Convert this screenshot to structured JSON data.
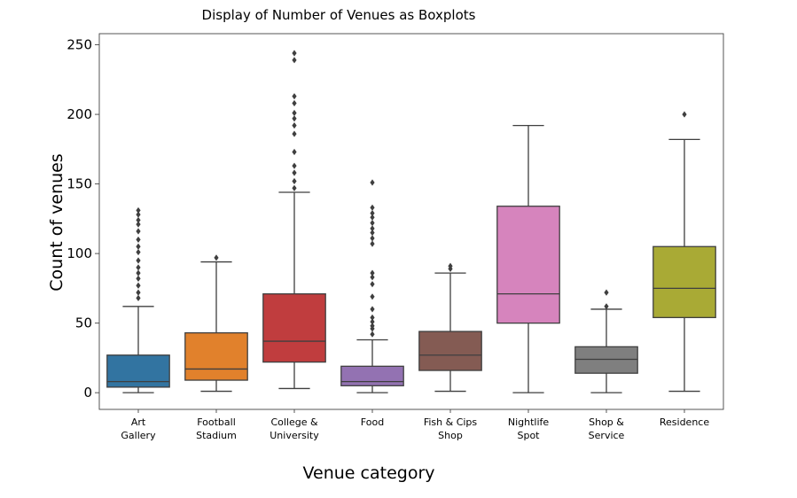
{
  "chart_data": {
    "type": "box",
    "title": "Display of Number of Venues as Boxplots",
    "xlabel": "Venue category",
    "ylabel": "Count of venues",
    "ylim": [
      -12,
      258
    ],
    "yticks": [
      0,
      50,
      100,
      150,
      200,
      250
    ],
    "grid": false,
    "categories": [
      {
        "label": [
          "Art",
          "Gallery"
        ],
        "color": "#3274a1",
        "whisker_low": 0,
        "q1": 4,
        "median": 8,
        "q3": 27,
        "whisker_high": 62,
        "outliers": [
          68,
          72,
          77,
          82,
          86,
          90,
          95,
          101,
          105,
          110,
          116,
          121,
          124,
          128,
          131
        ]
      },
      {
        "label": [
          "Football",
          "Stadium"
        ],
        "color": "#e1812c",
        "whisker_low": 1,
        "q1": 9,
        "median": 17,
        "q3": 43,
        "whisker_high": 94,
        "outliers": [
          97
        ]
      },
      {
        "label": [
          "College &",
          "University"
        ],
        "color": "#c03d3e",
        "whisker_low": 3,
        "q1": 22,
        "median": 37,
        "q3": 71,
        "whisker_high": 144,
        "outliers": [
          147,
          152,
          158,
          163,
          173,
          186,
          192,
          197,
          201,
          208,
          213,
          239,
          244
        ]
      },
      {
        "label": [
          "Food",
          ""
        ],
        "color": "#9372b2",
        "whisker_low": 0,
        "q1": 5,
        "median": 8,
        "q3": 19,
        "whisker_high": 38,
        "outliers": [
          42,
          46,
          48,
          51,
          54,
          60,
          69,
          78,
          83,
          86,
          107,
          111,
          115,
          118,
          122,
          126,
          129,
          133,
          151
        ]
      },
      {
        "label": [
          "Fish & Cips",
          "Shop"
        ],
        "color": "#845b53",
        "whisker_low": 1,
        "q1": 16,
        "median": 27,
        "q3": 44,
        "whisker_high": 86,
        "outliers": [
          89,
          91
        ]
      },
      {
        "label": [
          "Nightlife",
          "Spot"
        ],
        "color": "#d684bd",
        "whisker_low": 0,
        "q1": 50,
        "median": 71,
        "q3": 134,
        "whisker_high": 192,
        "outliers": []
      },
      {
        "label": [
          "Shop &",
          "Service"
        ],
        "color": "#7f7f7f",
        "whisker_low": 0,
        "q1": 14,
        "median": 24,
        "q3": 33,
        "whisker_high": 60,
        "outliers": [
          62,
          72
        ]
      },
      {
        "label": [
          "Residence",
          ""
        ],
        "color": "#a9aa35",
        "whisker_low": 1,
        "q1": 54,
        "median": 75,
        "q3": 105,
        "whisker_high": 182,
        "outliers": [
          200
        ]
      }
    ]
  }
}
